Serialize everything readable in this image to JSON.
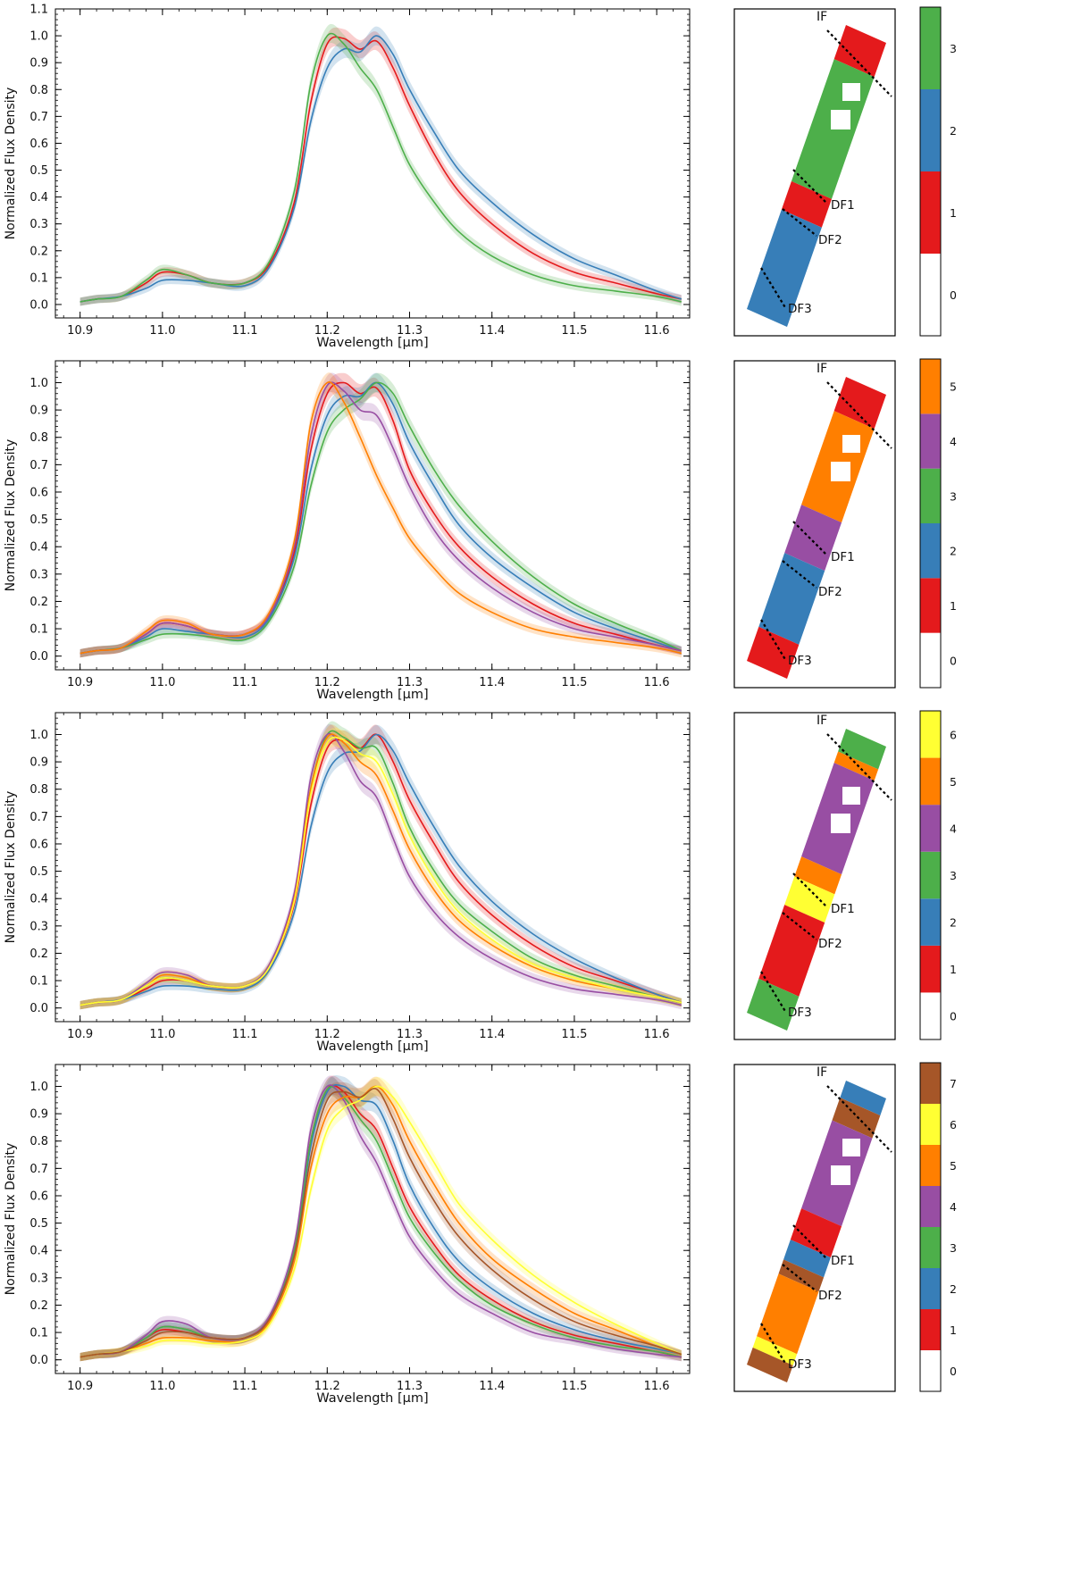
{
  "colors": {
    "0": "#ffffff",
    "1": "#e41a1c",
    "2": "#377eb8",
    "3": "#4daf4a",
    "4": "#984ea3",
    "5": "#ff7f00",
    "6": "#ffff33",
    "7": "#a65628"
  },
  "map_labels": {
    "if": "IF",
    "df1": "DF1",
    "df2": "DF2",
    "df3": "DF3"
  },
  "chart_data": [
    {
      "type": "line",
      "xlabel": "Wavelength [μm]",
      "ylabel": "Normalized Flux Density",
      "xlim": [
        10.87,
        11.64
      ],
      "ylim": [
        -0.05,
        1.1
      ],
      "xticks": [
        10.9,
        11.0,
        11.1,
        11.2,
        11.3,
        11.4,
        11.5,
        11.6
      ],
      "yticks": [
        0.0,
        0.1,
        0.2,
        0.3,
        0.4,
        0.5,
        0.6,
        0.7,
        0.8,
        0.9,
        1.0,
        1.1
      ],
      "x": [
        10.9,
        10.92,
        10.95,
        10.98,
        11.0,
        11.03,
        11.06,
        11.1,
        11.13,
        11.16,
        11.18,
        11.2,
        11.22,
        11.24,
        11.26,
        11.28,
        11.3,
        11.33,
        11.36,
        11.4,
        11.45,
        11.5,
        11.55,
        11.6,
        11.63
      ],
      "series": [
        {
          "name": "1",
          "color_key": "1",
          "values": [
            0.01,
            0.02,
            0.03,
            0.08,
            0.12,
            0.11,
            0.08,
            0.08,
            0.15,
            0.38,
            0.75,
            0.97,
            0.99,
            0.95,
            0.98,
            0.88,
            0.74,
            0.56,
            0.42,
            0.3,
            0.19,
            0.12,
            0.08,
            0.04,
            0.02
          ]
        },
        {
          "name": "2",
          "color_key": "2",
          "values": [
            0.01,
            0.02,
            0.03,
            0.06,
            0.09,
            0.09,
            0.08,
            0.07,
            0.14,
            0.36,
            0.68,
            0.88,
            0.95,
            0.94,
            1.0,
            0.93,
            0.8,
            0.64,
            0.5,
            0.38,
            0.26,
            0.17,
            0.11,
            0.05,
            0.02
          ]
        },
        {
          "name": "3",
          "color_key": "3",
          "values": [
            0.01,
            0.02,
            0.03,
            0.09,
            0.13,
            0.11,
            0.08,
            0.08,
            0.16,
            0.42,
            0.82,
            1.0,
            0.97,
            0.88,
            0.8,
            0.66,
            0.52,
            0.38,
            0.27,
            0.18,
            0.11,
            0.07,
            0.05,
            0.03,
            0.01
          ]
        }
      ],
      "colorbar": {
        "labels": [
          "0",
          "1",
          "2",
          "3"
        ]
      }
    },
    {
      "type": "line",
      "xlabel": "Wavelength [μm]",
      "ylabel": "Normalized Flux Density",
      "xlim": [
        10.87,
        11.64
      ],
      "ylim": [
        -0.05,
        1.08
      ],
      "xticks": [
        10.9,
        11.0,
        11.1,
        11.2,
        11.3,
        11.4,
        11.5,
        11.6
      ],
      "yticks": [
        0.0,
        0.1,
        0.2,
        0.3,
        0.4,
        0.5,
        0.6,
        0.7,
        0.8,
        0.9,
        1.0
      ],
      "x": [
        10.9,
        10.92,
        10.95,
        10.98,
        11.0,
        11.03,
        11.06,
        11.1,
        11.13,
        11.16,
        11.18,
        11.2,
        11.22,
        11.24,
        11.26,
        11.28,
        11.3,
        11.33,
        11.36,
        11.4,
        11.45,
        11.5,
        11.55,
        11.6,
        11.63
      ],
      "series": [
        {
          "name": "1",
          "color_key": "1",
          "values": [
            0.01,
            0.02,
            0.03,
            0.08,
            0.12,
            0.11,
            0.08,
            0.08,
            0.15,
            0.38,
            0.75,
            0.96,
            1.0,
            0.96,
            0.98,
            0.86,
            0.68,
            0.52,
            0.4,
            0.29,
            0.19,
            0.12,
            0.08,
            0.04,
            0.02
          ]
        },
        {
          "name": "2",
          "color_key": "2",
          "values": [
            0.01,
            0.02,
            0.03,
            0.07,
            0.1,
            0.09,
            0.08,
            0.07,
            0.14,
            0.36,
            0.68,
            0.88,
            0.95,
            0.95,
            1.0,
            0.92,
            0.78,
            0.62,
            0.48,
            0.36,
            0.25,
            0.16,
            0.1,
            0.05,
            0.02
          ]
        },
        {
          "name": "3",
          "color_key": "3",
          "values": [
            0.01,
            0.02,
            0.03,
            0.06,
            0.08,
            0.08,
            0.07,
            0.06,
            0.13,
            0.33,
            0.62,
            0.82,
            0.9,
            0.94,
            1.0,
            0.96,
            0.84,
            0.68,
            0.55,
            0.42,
            0.29,
            0.19,
            0.12,
            0.06,
            0.02
          ]
        },
        {
          "name": "4",
          "color_key": "4",
          "values": [
            0.01,
            0.02,
            0.03,
            0.08,
            0.12,
            0.11,
            0.08,
            0.08,
            0.15,
            0.4,
            0.8,
            0.99,
            0.97,
            0.9,
            0.88,
            0.76,
            0.62,
            0.46,
            0.35,
            0.25,
            0.16,
            0.1,
            0.07,
            0.04,
            0.02
          ]
        },
        {
          "name": "5",
          "color_key": "5",
          "values": [
            0.01,
            0.02,
            0.03,
            0.09,
            0.13,
            0.12,
            0.08,
            0.08,
            0.16,
            0.42,
            0.85,
            1.0,
            0.93,
            0.8,
            0.66,
            0.54,
            0.43,
            0.32,
            0.23,
            0.16,
            0.1,
            0.07,
            0.05,
            0.03,
            0.01
          ]
        }
      ],
      "colorbar": {
        "labels": [
          "0",
          "1",
          "2",
          "3",
          "4",
          "5"
        ]
      }
    },
    {
      "type": "line",
      "xlabel": "Wavelength [μm]",
      "ylabel": "Normalized Flux Density",
      "xlim": [
        10.87,
        11.64
      ],
      "ylim": [
        -0.05,
        1.08
      ],
      "xticks": [
        10.9,
        11.0,
        11.1,
        11.2,
        11.3,
        11.4,
        11.5,
        11.6
      ],
      "yticks": [
        0.0,
        0.1,
        0.2,
        0.3,
        0.4,
        0.5,
        0.6,
        0.7,
        0.8,
        0.9,
        1.0
      ],
      "x": [
        10.9,
        10.92,
        10.95,
        10.98,
        11.0,
        11.03,
        11.06,
        11.1,
        11.13,
        11.16,
        11.18,
        11.2,
        11.22,
        11.24,
        11.26,
        11.28,
        11.3,
        11.33,
        11.36,
        11.4,
        11.45,
        11.5,
        11.55,
        11.6,
        11.63
      ],
      "series": [
        {
          "name": "1",
          "color_key": "1",
          "values": [
            0.01,
            0.02,
            0.03,
            0.07,
            0.1,
            0.1,
            0.08,
            0.08,
            0.15,
            0.38,
            0.74,
            0.95,
            0.98,
            0.95,
            1.0,
            0.9,
            0.76,
            0.6,
            0.46,
            0.34,
            0.23,
            0.15,
            0.1,
            0.05,
            0.02
          ]
        },
        {
          "name": "2",
          "color_key": "2",
          "values": [
            0.01,
            0.02,
            0.03,
            0.06,
            0.08,
            0.08,
            0.07,
            0.07,
            0.14,
            0.35,
            0.66,
            0.86,
            0.93,
            0.94,
            1.0,
            0.94,
            0.82,
            0.66,
            0.52,
            0.39,
            0.27,
            0.18,
            0.11,
            0.05,
            0.02
          ]
        },
        {
          "name": "3",
          "color_key": "3",
          "values": [
            0.01,
            0.02,
            0.03,
            0.08,
            0.11,
            0.1,
            0.08,
            0.08,
            0.15,
            0.4,
            0.8,
            1.0,
            0.99,
            0.95,
            0.95,
            0.82,
            0.66,
            0.5,
            0.38,
            0.28,
            0.18,
            0.12,
            0.08,
            0.04,
            0.02
          ]
        },
        {
          "name": "4",
          "color_key": "4",
          "values": [
            0.01,
            0.02,
            0.03,
            0.09,
            0.13,
            0.12,
            0.08,
            0.08,
            0.16,
            0.42,
            0.84,
            1.0,
            0.94,
            0.83,
            0.77,
            0.62,
            0.48,
            0.35,
            0.26,
            0.18,
            0.11,
            0.07,
            0.05,
            0.03,
            0.01
          ]
        },
        {
          "name": "5",
          "color_key": "5",
          "values": [
            0.01,
            0.02,
            0.03,
            0.08,
            0.12,
            0.11,
            0.08,
            0.08,
            0.15,
            0.4,
            0.8,
            0.99,
            0.97,
            0.9,
            0.85,
            0.72,
            0.58,
            0.43,
            0.32,
            0.23,
            0.15,
            0.1,
            0.07,
            0.04,
            0.02
          ]
        },
        {
          "name": "6",
          "color_key": "6",
          "values": [
            0.01,
            0.02,
            0.03,
            0.08,
            0.11,
            0.1,
            0.08,
            0.08,
            0.15,
            0.39,
            0.78,
            0.97,
            0.98,
            0.93,
            0.9,
            0.78,
            0.63,
            0.47,
            0.35,
            0.25,
            0.16,
            0.11,
            0.07,
            0.04,
            0.02
          ]
        }
      ],
      "colorbar": {
        "labels": [
          "0",
          "1",
          "2",
          "3",
          "4",
          "5",
          "6"
        ]
      }
    },
    {
      "type": "line",
      "xlabel": "Wavelength [μm]",
      "ylabel": "Normalized Flux Density",
      "xlim": [
        10.87,
        11.64
      ],
      "ylim": [
        -0.05,
        1.08
      ],
      "xticks": [
        10.9,
        11.0,
        11.1,
        11.2,
        11.3,
        11.4,
        11.5,
        11.6
      ],
      "yticks": [
        0.0,
        0.1,
        0.2,
        0.3,
        0.4,
        0.5,
        0.6,
        0.7,
        0.8,
        0.9,
        1.0
      ],
      "x": [
        10.9,
        10.92,
        10.95,
        10.98,
        11.0,
        11.03,
        11.06,
        11.1,
        11.13,
        11.16,
        11.18,
        11.2,
        11.22,
        11.24,
        11.26,
        11.28,
        11.3,
        11.33,
        11.36,
        11.4,
        11.45,
        11.5,
        11.55,
        11.6,
        11.63
      ],
      "series": [
        {
          "name": "1",
          "color_key": "1",
          "values": [
            0.01,
            0.02,
            0.03,
            0.08,
            0.11,
            0.1,
            0.08,
            0.08,
            0.15,
            0.4,
            0.8,
            0.99,
            0.98,
            0.9,
            0.84,
            0.7,
            0.56,
            0.42,
            0.31,
            0.22,
            0.14,
            0.09,
            0.06,
            0.03,
            0.01
          ]
        },
        {
          "name": "2",
          "color_key": "2",
          "values": [
            0.01,
            0.02,
            0.03,
            0.08,
            0.12,
            0.11,
            0.08,
            0.08,
            0.15,
            0.39,
            0.78,
            0.98,
            1.0,
            0.95,
            0.93,
            0.8,
            0.64,
            0.48,
            0.36,
            0.26,
            0.17,
            0.11,
            0.07,
            0.04,
            0.02
          ]
        },
        {
          "name": "3",
          "color_key": "3",
          "values": [
            0.01,
            0.02,
            0.03,
            0.08,
            0.12,
            0.11,
            0.08,
            0.08,
            0.15,
            0.4,
            0.8,
            0.99,
            0.96,
            0.88,
            0.8,
            0.66,
            0.52,
            0.39,
            0.29,
            0.2,
            0.13,
            0.08,
            0.05,
            0.03,
            0.01
          ]
        },
        {
          "name": "4",
          "color_key": "4",
          "values": [
            0.01,
            0.02,
            0.03,
            0.09,
            0.14,
            0.13,
            0.08,
            0.08,
            0.16,
            0.42,
            0.84,
            1.0,
            0.95,
            0.82,
            0.72,
            0.58,
            0.45,
            0.33,
            0.24,
            0.17,
            0.1,
            0.07,
            0.04,
            0.02,
            0.01
          ]
        },
        {
          "name": "5",
          "color_key": "5",
          "values": [
            0.01,
            0.02,
            0.03,
            0.06,
            0.08,
            0.08,
            0.07,
            0.07,
            0.14,
            0.36,
            0.7,
            0.9,
            0.96,
            0.96,
            1.0,
            0.93,
            0.8,
            0.64,
            0.5,
            0.37,
            0.26,
            0.17,
            0.11,
            0.05,
            0.02
          ]
        },
        {
          "name": "6",
          "color_key": "6",
          "values": [
            0.01,
            0.02,
            0.03,
            0.05,
            0.07,
            0.07,
            0.06,
            0.07,
            0.13,
            0.33,
            0.62,
            0.84,
            0.92,
            0.95,
            1.0,
            0.96,
            0.87,
            0.72,
            0.57,
            0.44,
            0.31,
            0.21,
            0.13,
            0.06,
            0.02
          ]
        },
        {
          "name": "7",
          "color_key": "7",
          "values": [
            0.01,
            0.02,
            0.03,
            0.07,
            0.1,
            0.1,
            0.08,
            0.08,
            0.15,
            0.38,
            0.74,
            0.95,
            0.98,
            0.96,
            0.99,
            0.88,
            0.74,
            0.58,
            0.45,
            0.33,
            0.22,
            0.14,
            0.09,
            0.05,
            0.02
          ]
        }
      ],
      "colorbar": {
        "labels": [
          "0",
          "1",
          "2",
          "3",
          "4",
          "5",
          "6",
          "7"
        ]
      }
    }
  ]
}
